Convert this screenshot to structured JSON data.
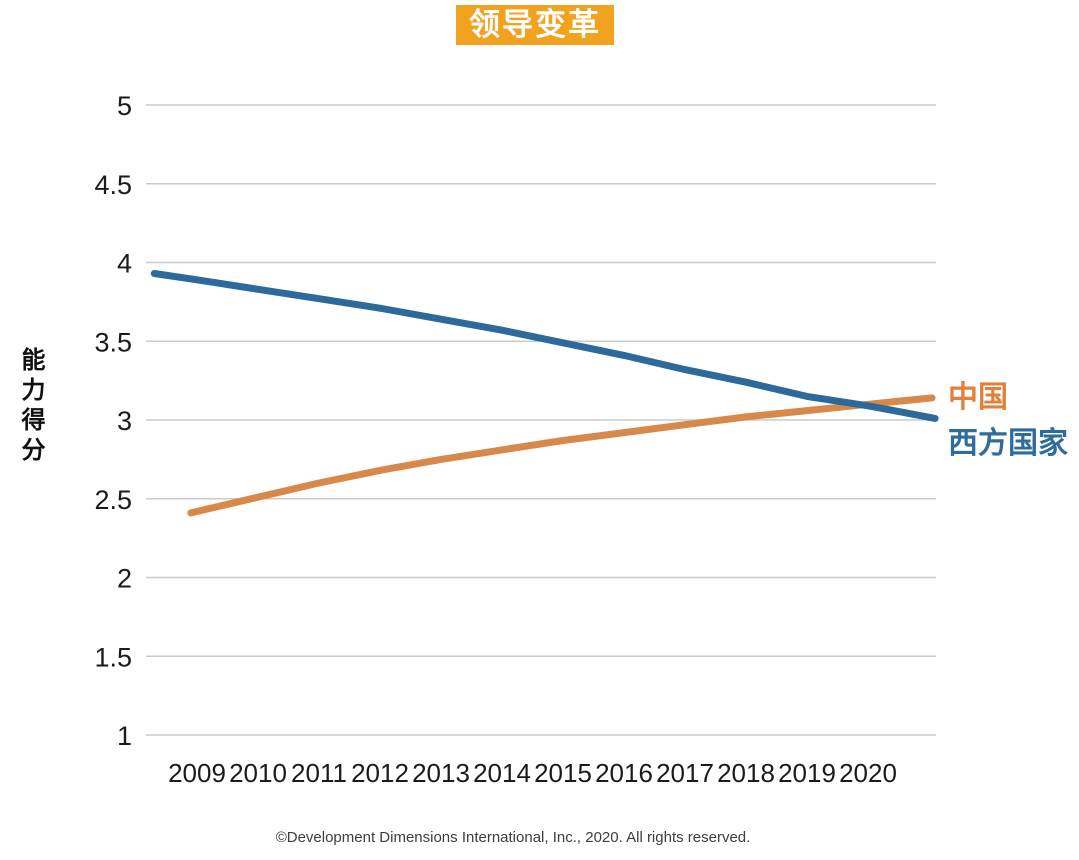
{
  "colors": {
    "title_bg": "#F1A31F",
    "title_text": "#FFFFFF",
    "gridline": "#CBCBCB",
    "tick_text": "#1B1B1B",
    "footer_text": "#3D3D3D",
    "china_accent": "#D8894A",
    "western_accent": "#2B6A9B"
  },
  "chart_data": {
    "type": "line",
    "title": "领导变革",
    "ylabel": "能力得分",
    "categories": [
      "2009",
      "2010",
      "2011",
      "2012",
      "2013",
      "2014",
      "2015",
      "2016",
      "2017",
      "2018",
      "2019",
      "2020"
    ],
    "ylim": [
      1,
      5
    ],
    "ytick_step": 0.5,
    "grid": "horizontal-only",
    "legend_position": "right-of-line-ends",
    "footnote": "©Development Dimensions International, Inc., 2020. All rights reserved.",
    "series": [
      {
        "id": "china",
        "name": "中国",
        "color": "#D8894A",
        "label_color": "#E0813B",
        "values": [
          2.41,
          2.51,
          2.6,
          2.68,
          2.75,
          2.81,
          2.87,
          2.92,
          2.97,
          3.02,
          3.06,
          3.1
        ],
        "points": [
          [
            2008.9,
            2.41
          ],
          [
            2010,
            2.51
          ],
          [
            2011,
            2.6
          ],
          [
            2012,
            2.68
          ],
          [
            2013,
            2.75
          ],
          [
            2014,
            2.81
          ],
          [
            2015,
            2.87
          ],
          [
            2016,
            2.92
          ],
          [
            2017,
            2.97
          ],
          [
            2018,
            3.02
          ],
          [
            2019,
            3.06
          ],
          [
            2020,
            3.1
          ],
          [
            2021.05,
            3.14
          ]
        ]
      },
      {
        "id": "western",
        "name": "西方国家",
        "color": "#2B6A9B",
        "label_color": "#2E6C9E",
        "values": [
          3.89,
          3.83,
          3.77,
          3.71,
          3.64,
          3.57,
          3.49,
          3.41,
          3.32,
          3.24,
          3.15,
          3.09
        ],
        "points": [
          [
            2008.3,
            3.93
          ],
          [
            2009,
            3.89
          ],
          [
            2010,
            3.83
          ],
          [
            2011,
            3.77
          ],
          [
            2012,
            3.71
          ],
          [
            2013,
            3.64
          ],
          [
            2014,
            3.57
          ],
          [
            2015,
            3.49
          ],
          [
            2016,
            3.41
          ],
          [
            2017,
            3.32
          ],
          [
            2018,
            3.24
          ],
          [
            2019,
            3.15
          ],
          [
            2020,
            3.09
          ],
          [
            2021.1,
            3.01
          ]
        ]
      }
    ]
  }
}
